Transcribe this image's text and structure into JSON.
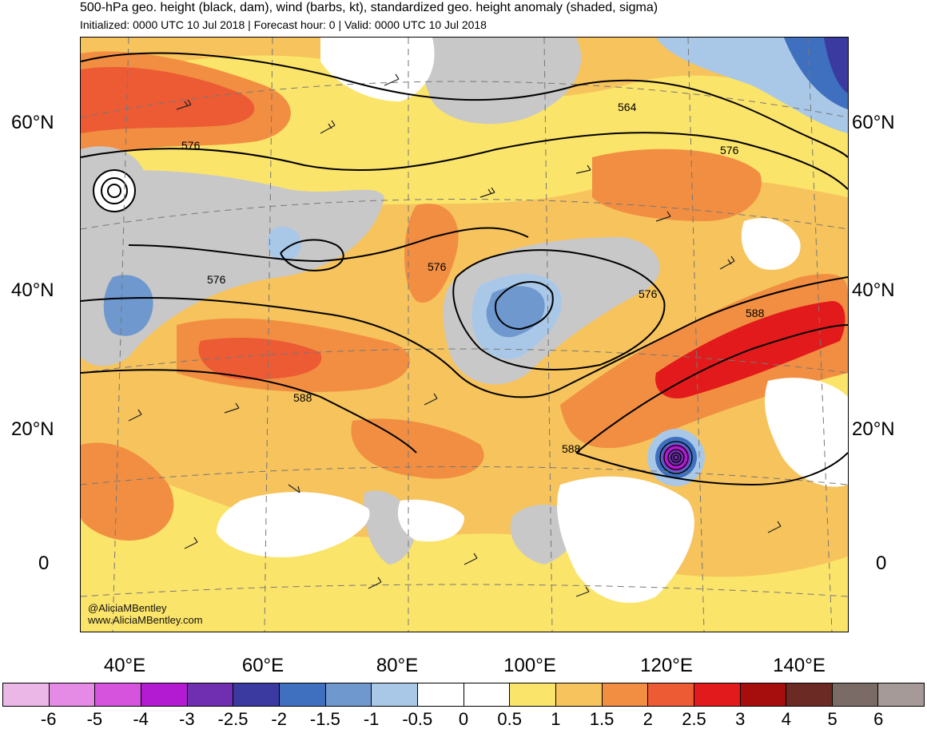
{
  "title": "500-hPa geo. height (black, dam), wind (barbs, kt), standardized geo. height anomaly (shaded, sigma)",
  "subtitle": "Initialized: 0000 UTC 10 Jul 2018 | Forecast hour: 0 | Valid: 0000 UTC 10 Jul 2018",
  "lat_labels": [
    "60°N",
    "40°N",
    "20°N",
    "0"
  ],
  "lon_labels": [
    "40°E",
    "60°E",
    "80°E",
    "100°E",
    "120°E",
    "140°E"
  ],
  "contour_labels": [
    "564",
    "576",
    "576",
    "576",
    "576",
    "576",
    "588",
    "588",
    "588"
  ],
  "credit": {
    "handle": "@AliciaMBentley",
    "url": "www.AliciaMBentley.com"
  },
  "colorbar": {
    "labels": [
      "-6",
      "-5",
      "-4",
      "-3",
      "-2.5",
      "-2",
      "-1.5",
      "-1",
      "-0.5",
      "0",
      "0.5",
      "1",
      "1.5",
      "2",
      "2.5",
      "3",
      "4",
      "5",
      "6"
    ],
    "colors": [
      "#eab7e6",
      "#e58be6",
      "#d653de",
      "#b21bd1",
      "#6f2fb0",
      "#3a3aa0",
      "#3f6fbf",
      "#6f98cf",
      "#a9c8e8",
      "#ffffff",
      "#ffffff",
      "#fbe46a",
      "#f6c35c",
      "#f18e42",
      "#ec5b34",
      "#e21a1b",
      "#a60d0d",
      "#6b2a24",
      "#7a6b66",
      "#a59a98"
    ]
  }
}
